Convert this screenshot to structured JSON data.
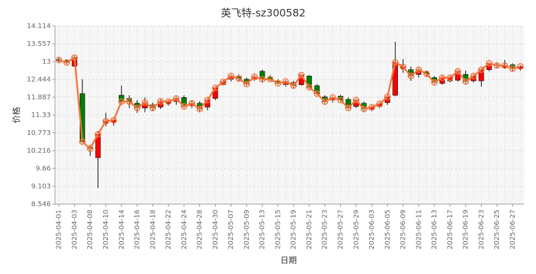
{
  "chart_data": {
    "type": "candlestick",
    "title": "英飞特-sz300582",
    "xlabel": "日期",
    "ylabel": "价格",
    "ylim": [
      8.546,
      14.114
    ],
    "yticks": [
      "14.114",
      "13.557",
      "13",
      "12.444",
      "11.887",
      "11.33",
      "10.773",
      "10.216",
      "9.66",
      "9.103",
      "8.546"
    ],
    "grid": true,
    "up_color": "#ff0000",
    "down_color": "#008000",
    "ma_color": "#f4743c",
    "dates": [
      "2025-04-01",
      "2025-04-02",
      "2025-04-03",
      "2025-04-07",
      "2025-04-08",
      "2025-04-09",
      "2025-04-10",
      "2025-04-11",
      "2025-04-14",
      "2025-04-15",
      "2025-04-16",
      "2025-04-17",
      "2025-04-18",
      "2025-04-21",
      "2025-04-22",
      "2025-04-23",
      "2025-04-24",
      "2025-04-25",
      "2025-04-28",
      "2025-04-29",
      "2025-04-30",
      "2025-05-06",
      "2025-05-07",
      "2025-05-08",
      "2025-05-09",
      "2025-05-12",
      "2025-05-13",
      "2025-05-14",
      "2025-05-15",
      "2025-05-16",
      "2025-05-19",
      "2025-05-20",
      "2025-05-21",
      "2025-05-22",
      "2025-05-23",
      "2025-05-26",
      "2025-05-27",
      "2025-05-28",
      "2025-05-29",
      "2025-05-30",
      "2025-06-03",
      "2025-06-04",
      "2025-06-05",
      "2025-06-06",
      "2025-06-09",
      "2025-06-10",
      "2025-06-11",
      "2025-06-12",
      "2025-06-13",
      "2025-06-16",
      "2025-06-17",
      "2025-06-18",
      "2025-06-19",
      "2025-06-20",
      "2025-06-23",
      "2025-06-24",
      "2025-06-25",
      "2025-06-26",
      "2025-06-27",
      "2025-06-30"
    ],
    "xtick_labels": [
      "2025-04-01",
      "2025-04-03",
      "2025-04-08",
      "2025-04-10",
      "2025-04-14",
      "2025-04-16",
      "2025-04-18",
      "2025-04-22",
      "2025-04-24",
      "2025-04-28",
      "2025-04-30",
      "2025-05-07",
      "2025-05-09",
      "2025-05-13",
      "2025-05-15",
      "2025-05-19",
      "2025-05-21",
      "2025-05-23",
      "2025-05-27",
      "2025-05-29",
      "2025-06-03",
      "2025-06-05",
      "2025-06-09",
      "2025-06-11",
      "2025-06-13",
      "2025-06-17",
      "2025-06-19",
      "2025-06-23",
      "2025-06-25",
      "2025-06-27"
    ],
    "ohlc": [
      [
        13.06,
        13.05,
        13.14,
        12.99
      ],
      [
        13.03,
        12.97,
        13.07,
        12.92
      ],
      [
        12.86,
        13.13,
        13.18,
        12.84
      ],
      [
        12.0,
        10.5,
        12.45,
        10.45
      ],
      [
        10.33,
        10.28,
        10.4,
        10.05
      ],
      [
        10.0,
        10.73,
        10.8,
        9.05
      ],
      [
        11.08,
        11.14,
        11.4,
        10.98
      ],
      [
        11.1,
        11.17,
        11.23,
        11.0
      ],
      [
        11.95,
        11.75,
        12.25,
        11.68
      ],
      [
        11.85,
        11.75,
        11.95,
        11.55
      ],
      [
        11.7,
        11.55,
        11.8,
        11.4
      ],
      [
        11.55,
        11.72,
        11.88,
        11.42
      ],
      [
        11.65,
        11.55,
        11.72,
        11.45
      ],
      [
        11.58,
        11.76,
        11.82,
        11.52
      ],
      [
        11.7,
        11.75,
        11.8,
        11.62
      ],
      [
        11.75,
        11.85,
        11.9,
        11.65
      ],
      [
        11.88,
        11.6,
        11.95,
        11.55
      ],
      [
        11.62,
        11.7,
        11.78,
        11.55
      ],
      [
        11.7,
        11.52,
        11.76,
        11.45
      ],
      [
        11.58,
        11.8,
        11.85,
        11.48
      ],
      [
        11.85,
        12.18,
        12.22,
        11.8
      ],
      [
        12.28,
        12.37,
        12.42,
        12.25
      ],
      [
        12.45,
        12.55,
        12.6,
        12.38
      ],
      [
        12.55,
        12.47,
        12.6,
        12.4
      ],
      [
        12.45,
        12.3,
        12.5,
        12.25
      ],
      [
        12.45,
        12.53,
        12.58,
        12.4
      ],
      [
        12.7,
        12.45,
        12.75,
        12.38
      ],
      [
        12.52,
        12.45,
        12.58,
        12.4
      ],
      [
        12.4,
        12.32,
        12.45,
        12.28
      ],
      [
        12.28,
        12.38,
        12.42,
        12.22
      ],
      [
        12.35,
        12.25,
        12.4,
        12.18
      ],
      [
        12.28,
        12.58,
        12.62,
        12.25
      ],
      [
        12.55,
        12.2,
        12.58,
        12.15
      ],
      [
        12.25,
        12.0,
        12.3,
        11.95
      ],
      [
        11.9,
        11.75,
        11.95,
        11.7
      ],
      [
        11.8,
        11.88,
        11.92,
        11.72
      ],
      [
        11.92,
        11.8,
        11.96,
        11.75
      ],
      [
        11.82,
        11.55,
        11.88,
        11.5
      ],
      [
        11.6,
        11.8,
        11.84,
        11.55
      ],
      [
        11.7,
        11.52,
        11.75,
        11.45
      ],
      [
        11.5,
        11.58,
        11.62,
        11.45
      ],
      [
        11.6,
        11.68,
        11.72,
        11.55
      ],
      [
        11.72,
        11.9,
        11.95,
        11.65
      ],
      [
        11.95,
        12.98,
        13.62,
        11.92
      ],
      [
        12.8,
        12.84,
        13.08,
        12.65
      ],
      [
        12.75,
        12.55,
        12.85,
        12.4
      ],
      [
        12.6,
        12.75,
        12.8,
        12.5
      ],
      [
        12.68,
        12.62,
        12.72,
        12.52
      ],
      [
        12.5,
        12.35,
        12.55,
        12.3
      ],
      [
        12.32,
        12.5,
        12.55,
        12.28
      ],
      [
        12.4,
        12.5,
        12.55,
        12.35
      ],
      [
        12.42,
        12.7,
        12.75,
        12.38
      ],
      [
        12.6,
        12.38,
        12.72,
        12.32
      ],
      [
        12.4,
        12.55,
        12.6,
        12.35
      ],
      [
        12.4,
        12.75,
        12.8,
        12.22
      ],
      [
        12.75,
        12.95,
        12.98,
        12.7
      ],
      [
        12.9,
        12.88,
        12.95,
        12.8
      ],
      [
        12.82,
        12.88,
        13.05,
        12.78
      ],
      [
        12.9,
        12.78,
        12.95,
        12.7
      ],
      [
        12.78,
        12.85,
        12.88,
        12.72
      ]
    ],
    "ma": [
      13.05,
      12.97,
      13.13,
      10.5,
      10.28,
      10.73,
      11.14,
      11.17,
      11.75,
      11.75,
      11.55,
      11.72,
      11.55,
      11.76,
      11.75,
      11.85,
      11.6,
      11.7,
      11.52,
      11.8,
      12.18,
      12.37,
      12.55,
      12.47,
      12.3,
      12.53,
      12.45,
      12.45,
      12.32,
      12.38,
      12.25,
      12.58,
      12.2,
      12.0,
      11.75,
      11.88,
      11.8,
      11.55,
      11.8,
      11.52,
      11.58,
      11.68,
      11.9,
      12.98,
      12.84,
      12.55,
      12.75,
      12.62,
      12.35,
      12.5,
      12.5,
      12.7,
      12.38,
      12.55,
      12.75,
      12.95,
      12.88,
      12.88,
      12.78,
      12.85
    ]
  }
}
